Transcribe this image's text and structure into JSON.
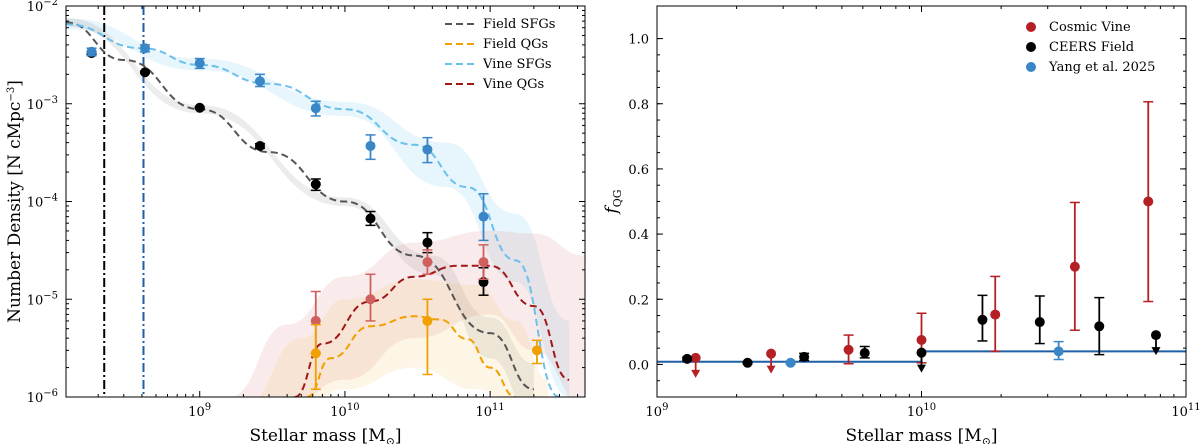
{
  "chart_data": [
    {
      "type": "scatter",
      "panel": "left",
      "xlabel": "Stellar mass [M",
      "xlabel_sub": "⊙",
      "xlabel_end": "]",
      "ylabel": "Number Density [N cMpc",
      "ylabel_sup": "−3",
      "ylabel_end": "]",
      "xscale": "log",
      "yscale": "log",
      "xlim": [
        120000000,
        450000000000
      ],
      "ylim": [
        1e-06,
        0.01
      ],
      "x_ticks": [
        {
          "value": 1000000000,
          "base": "10",
          "exp": "9"
        },
        {
          "value": 10000000000,
          "base": "10",
          "exp": "10"
        },
        {
          "value": 100000000000,
          "base": "10",
          "exp": "11"
        }
      ],
      "y_ticks": [
        {
          "value": 1e-06,
          "base": "10",
          "exp": "−6"
        },
        {
          "value": 1e-05,
          "base": "10",
          "exp": "−5"
        },
        {
          "value": 0.0001,
          "base": "10",
          "exp": "−4"
        },
        {
          "value": 0.001,
          "base": "10",
          "exp": "−3"
        },
        {
          "value": 0.01,
          "base": "10",
          "exp": "−2"
        }
      ],
      "mass_limits": [
        {
          "name": "field-limit",
          "x": 220000000,
          "color": "#000000"
        },
        {
          "name": "vine-limit",
          "x": 410000000,
          "color": "#1f5fa6"
        }
      ],
      "legend": {
        "placement": "top-right",
        "entries": [
          {
            "label": "Field SFGs",
            "color": "#555555"
          },
          {
            "label": "Field QGs",
            "color": "#f0a000"
          },
          {
            "label": "Vine SFGs",
            "color": "#6cc0ec"
          },
          {
            "label": "Vine QGs",
            "color": "#a01818"
          }
        ]
      },
      "curves": [
        {
          "name": "Field SFGs",
          "color": "#555555",
          "x": [
            120000000,
            300000000,
            1000000000,
            3000000000,
            10000000000,
            30000000000,
            100000000000,
            200000000000
          ],
          "y": [
            0.0068,
            0.0028,
            0.00088,
            0.00032,
            0.0001,
            2.8e-05,
            4.5e-06,
            1.2e-06
          ]
        },
        {
          "name": "Field QGs",
          "color": "#f0a000",
          "x": [
            5500000000,
            8000000000,
            15000000000,
            30000000000,
            45000000000,
            70000000000,
            100000000000,
            150000000000
          ],
          "y": [
            1e-06,
            2.5e-06,
            5.3e-06,
            6.7e-06,
            6.2e-06,
            3.9e-06,
            2e-06,
            1e-06
          ]
        },
        {
          "name": "Vine SFGs",
          "color": "#6cc0ec",
          "x": [
            120000000,
            400000000,
            1000000000,
            3000000000,
            10000000000,
            30000000000,
            70000000000,
            150000000000,
            300000000000
          ],
          "y": [
            0.0065,
            0.0037,
            0.0025,
            0.0016,
            0.00088,
            0.00038,
            0.00014,
            2.5e-05,
            1e-06
          ]
        },
        {
          "name": "Vine QGs",
          "color": "#a01818",
          "x": [
            4500000000,
            7000000000,
            15000000000,
            30000000000,
            60000000000,
            100000000000,
            200000000000,
            350000000000
          ],
          "y": [
            1e-06,
            3.5e-06,
            9.5e-06,
            1.7e-05,
            2.2e-05,
            2.2e-05,
            8.5e-06,
            1.5e-06
          ]
        }
      ],
      "bands": [
        {
          "name": "Vine SFGs",
          "color": "#6cc0ec",
          "x": [
            120000000,
            1000000000,
            10000000000,
            50000000000,
            150000000000,
            350000000000
          ],
          "lo": [
            0.0058,
            0.0022,
            0.00075,
            0.00014,
            1.5e-05,
            1e-06
          ],
          "hi": [
            0.0075,
            0.0029,
            0.00105,
            0.0004,
            7.5e-05,
            6e-06
          ]
        },
        {
          "name": "Field SFGs",
          "color": "#888888",
          "x": [
            120000000,
            1000000000,
            10000000000,
            40000000000,
            100000000000,
            200000000000
          ],
          "lo": [
            0.0062,
            0.0008,
            9e-05,
            1.8e-05,
            2.5e-06,
            6e-07
          ],
          "hi": [
            0.0075,
            0.00097,
            0.00011,
            2.8e-05,
            6.5e-06,
            2.2e-06
          ]
        },
        {
          "name": "Vine QGs",
          "color": "#d88080",
          "x": [
            1600000000,
            4000000000,
            10000000000,
            30000000000,
            100000000000,
            200000000000,
            450000000000
          ],
          "lo": [
            8e-07,
            8e-07,
            1.5e-06,
            4e-06,
            7e-06,
            3e-06,
            8e-07
          ],
          "hi": [
            1e-06,
            5.5e-06,
            1.7e-05,
            3.8e-05,
            5e-05,
            4.7e-05,
            2.8e-05
          ]
        },
        {
          "name": "Field QGs",
          "color": "#f0c060",
          "x": [
            2000000000,
            5000000000,
            10000000000,
            30000000000,
            80000000000,
            150000000000,
            250000000000
          ],
          "lo": [
            8e-07,
            8e-07,
            1.2e-06,
            2e-06,
            1.2e-06,
            8e-07,
            8e-07
          ],
          "hi": [
            8e-07,
            4e-06,
            1e-05,
            1.6e-05,
            1.4e-05,
            6e-06,
            1.5e-06
          ]
        }
      ],
      "series": [
        {
          "name": "Field SFGs data",
          "color": "#000000",
          "points": [
            {
              "x": 180000000,
              "y": 0.0033,
              "lo": 0.0032,
              "hi": 0.0034
            },
            {
              "x": 420000000,
              "y": 0.0021,
              "lo": 0.00205,
              "hi": 0.00215
            },
            {
              "x": 1000000000,
              "y": 0.00091,
              "lo": 0.00089,
              "hi": 0.00093
            },
            {
              "x": 2600000000,
              "y": 0.00037,
              "lo": 0.00035,
              "hi": 0.00039
            },
            {
              "x": 6300000000,
              "y": 0.00015,
              "lo": 0.00013,
              "hi": 0.00017
            },
            {
              "x": 15000000000,
              "y": 6.7e-05,
              "lo": 5.7e-05,
              "hi": 7.9e-05
            },
            {
              "x": 37000000000,
              "y": 3.8e-05,
              "lo": 3e-05,
              "hi": 4.8e-05
            },
            {
              "x": 90000000000,
              "y": 1.5e-05,
              "lo": 1.1e-05,
              "hi": 2.1e-05
            }
          ]
        },
        {
          "name": "Vine SFGs data",
          "color": "#3a86c6",
          "points": [
            {
              "x": 180000000,
              "y": 0.0034,
              "lo": 0.0031,
              "hi": 0.0037
            },
            {
              "x": 420000000,
              "y": 0.0037,
              "lo": 0.0034,
              "hi": 0.004
            },
            {
              "x": 1000000000,
              "y": 0.0026,
              "lo": 0.0023,
              "hi": 0.0029
            },
            {
              "x": 2600000000,
              "y": 0.0017,
              "lo": 0.0015,
              "hi": 0.002
            },
            {
              "x": 6300000000,
              "y": 0.0009,
              "lo": 0.00075,
              "hi": 0.00106
            },
            {
              "x": 15000000000,
              "y": 0.00037,
              "lo": 0.00027,
              "hi": 0.00048
            },
            {
              "x": 37000000000,
              "y": 0.00034,
              "lo": 0.00025,
              "hi": 0.00045
            },
            {
              "x": 90000000000,
              "y": 7e-05,
              "lo": 4e-05,
              "hi": 0.00012
            }
          ]
        },
        {
          "name": "Vine QGs data",
          "color": "#d06060",
          "points": [
            {
              "x": 6300000000,
              "y": 6e-06,
              "lo": 2.8e-06,
              "hi": 1.2e-05
            },
            {
              "x": 15000000000,
              "y": 1e-05,
              "lo": 6e-06,
              "hi": 1.8e-05
            },
            {
              "x": 37000000000,
              "y": 2.4e-05,
              "lo": 1.8e-05,
              "hi": 3.2e-05
            },
            {
              "x": 90000000000,
              "y": 2.4e-05,
              "lo": 1.6e-05,
              "hi": 3.6e-05
            }
          ]
        },
        {
          "name": "Field QGs data",
          "color": "#f0a000",
          "points": [
            {
              "x": 6300000000,
              "y": 2.8e-06,
              "lo": 1.2e-06,
              "hi": 5.5e-06
            },
            {
              "x": 37000000000,
              "y": 6e-06,
              "lo": 1.7e-06,
              "hi": 1e-05
            },
            {
              "x": 210000000000,
              "y": 3e-06,
              "lo": 2.2e-06,
              "hi": 3.8e-06
            }
          ]
        }
      ]
    },
    {
      "type": "scatter",
      "panel": "right",
      "xlabel": "Stellar mass [M",
      "xlabel_sub": "⊙",
      "xlabel_end": "]",
      "ylabel": "f",
      "ylabel_sub": "QG",
      "xscale": "log",
      "yscale": "linear",
      "xlim": [
        1000000000,
        100000000000
      ],
      "ylim": [
        -0.1,
        1.1
      ],
      "x_ticks": [
        {
          "value": 1000000000,
          "base": "10",
          "exp": "9"
        },
        {
          "value": 10000000000,
          "base": "10",
          "exp": "10"
        },
        {
          "value": 100000000000,
          "base": "10",
          "exp": "11"
        }
      ],
      "y_ticks": [
        {
          "value": 0,
          "label": "0.0"
        },
        {
          "value": 0.2,
          "label": "0.2"
        },
        {
          "value": 0.4,
          "label": "0.4"
        },
        {
          "value": 0.6,
          "label": "0.6"
        },
        {
          "value": 0.8,
          "label": "0.8"
        },
        {
          "value": 1.0,
          "label": "1.0"
        }
      ],
      "legend": {
        "placement": "top-right",
        "entries": [
          {
            "label": "Cosmic Vine",
            "color": "#b52025"
          },
          {
            "label": "CEERS Field",
            "color": "#000000"
          },
          {
            "label": "Yang et al. 2025",
            "color": "#3a86c6"
          }
        ]
      },
      "step_line": {
        "color": "#1f5fa6",
        "segments": [
          {
            "x0": 1000000000,
            "x1": 10000000000,
            "y": 0.008
          },
          {
            "x0": 10000000000,
            "x1": 100000000000,
            "y": 0.04
          }
        ]
      },
      "series": [
        {
          "name": "Cosmic Vine",
          "color": "#b52025",
          "points": [
            {
              "x": 1400000000,
              "y": 0.02,
              "upper_limit": true
            },
            {
              "x": 2700000000,
              "y": 0.033,
              "upper_limit": true
            },
            {
              "x": 5300000000,
              "y": 0.045,
              "lo": 0.002,
              "hi": 0.09
            },
            {
              "x": 10000000000,
              "y": 0.075,
              "lo": 0.005,
              "hi": 0.157
            },
            {
              "x": 19000000000,
              "y": 0.153,
              "lo": 0.04,
              "hi": 0.27
            },
            {
              "x": 38000000000,
              "y": 0.3,
              "lo": 0.105,
              "hi": 0.497
            },
            {
              "x": 72000000000,
              "y": 0.5,
              "lo": 0.193,
              "hi": 0.806
            }
          ]
        },
        {
          "name": "CEERS Field",
          "color": "#000000",
          "points": [
            {
              "x": 1300000000,
              "y": 0.017,
              "lo": 0.012,
              "hi": 0.022
            },
            {
              "x": 2200000000,
              "y": 0.005,
              "lo": 0.002,
              "hi": 0.008
            },
            {
              "x": 3600000000,
              "y": 0.023,
              "lo": 0.012,
              "hi": 0.034
            },
            {
              "x": 6100000000,
              "y": 0.035,
              "lo": 0.02,
              "hi": 0.055
            },
            {
              "x": 10000000000,
              "y": 0.036,
              "upper_limit": true
            },
            {
              "x": 17000000000,
              "y": 0.137,
              "lo": 0.072,
              "hi": 0.212
            },
            {
              "x": 28000000000,
              "y": 0.13,
              "lo": 0.064,
              "hi": 0.21
            },
            {
              "x": 47000000000,
              "y": 0.117,
              "lo": 0.03,
              "hi": 0.205
            },
            {
              "x": 77000000000,
              "y": 0.09,
              "upper_limit": true
            }
          ]
        },
        {
          "name": "Yang et al. 2025",
          "color": "#3a86c6",
          "points": [
            {
              "x": 3200000000,
              "y": 0.005,
              "lo": 0.001,
              "hi": 0.01
            },
            {
              "x": 33000000000,
              "y": 0.04,
              "lo": 0.015,
              "hi": 0.07
            }
          ]
        }
      ]
    }
  ]
}
